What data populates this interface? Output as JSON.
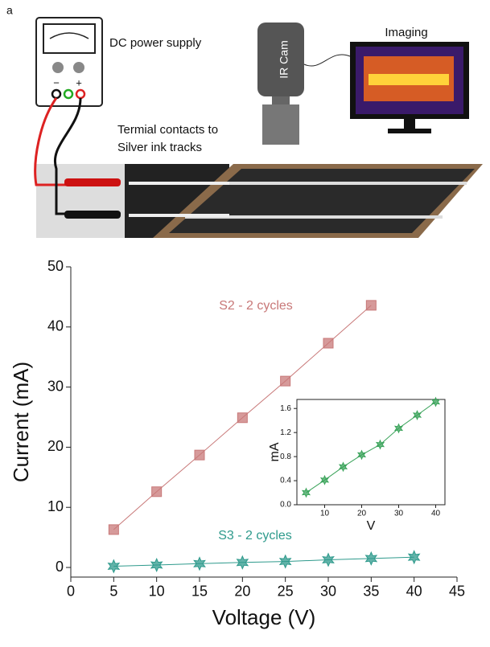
{
  "panel_a": {
    "label": "a",
    "power_supply": "DC power supply",
    "minus": "−",
    "plus": "+",
    "camera": "IR Cam",
    "imaging": "Imaging",
    "contacts": [
      "Termial contacts to",
      "Silver ink tracks"
    ]
  },
  "chart_data": [
    {
      "type": "line",
      "x_label": "Voltage (V)",
      "y_label": "Current (mA)",
      "x": [
        5,
        10,
        15,
        20,
        25,
        30,
        35,
        40
      ],
      "series": [
        {
          "name": "S2 - 2 cycles",
          "color": "#c87878",
          "marker": "square",
          "values": [
            6.3,
            12.6,
            18.7,
            24.9,
            31.0,
            37.3,
            43.6,
            null
          ]
        },
        {
          "name": "S3 - 2 cycles",
          "color": "#2e9a8c",
          "marker": "star",
          "values": [
            0.2,
            0.41,
            0.63,
            0.83,
            1.0,
            1.27,
            1.49,
            1.71
          ]
        }
      ],
      "xlim": [
        0,
        45
      ],
      "xticks": [
        0,
        5,
        10,
        15,
        20,
        25,
        30,
        35,
        40,
        45
      ],
      "ylim": [
        -1.6,
        50
      ],
      "yticks": [
        0,
        10,
        20,
        30,
        40,
        50
      ],
      "frame": false
    },
    {
      "type": "line",
      "x_label": "V",
      "y_label": "mA",
      "x": [
        5,
        10,
        15,
        20,
        25,
        30,
        35,
        40
      ],
      "series": [
        {
          "color": "#3aa35a",
          "marker": "star",
          "values": [
            0.2,
            0.41,
            0.63,
            0.83,
            1.0,
            1.27,
            1.49,
            1.71
          ]
        }
      ],
      "xlim": [
        2.5,
        42.5
      ],
      "xticks": [
        10,
        20,
        30,
        40
      ],
      "ylim": [
        0,
        1.75
      ],
      "yticks": [
        {
          "value": 0,
          "label": "0.0"
        },
        0.4,
        0.8,
        1.2,
        1.6
      ],
      "frame": true
    }
  ]
}
